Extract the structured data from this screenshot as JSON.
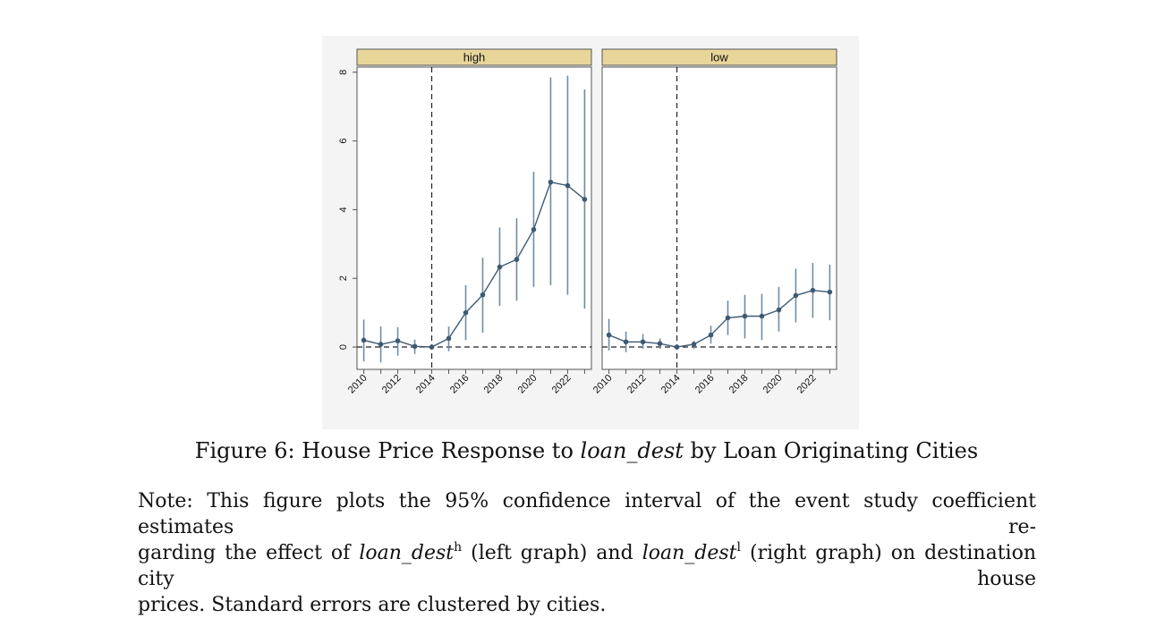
{
  "figure": {
    "caption_prefix": "Figure 6: House Price Response to",
    "caption_italic": "loan_dest",
    "caption_suffix": "by Loan Originating Cities",
    "note": {
      "t1": "Note: This figure plots the 95% confidence interval of the event study coefficient estimates re-",
      "t2a": "garding the effect of",
      "t2b_italic": "loan_dest",
      "t2b_sup": "h",
      "t2c": "(left graph) and",
      "t2d_italic": "loan_dest",
      "t2d_sup": "l",
      "t2e": "(right graph) on destination city house",
      "t3": "prices. Standard errors are clustered by cities."
    }
  },
  "colors": {
    "series": "#3d5a73",
    "ci": "#6f8ca3",
    "panel_header": "#e8d59a",
    "reference_line": "#222222"
  },
  "chart_data": [
    {
      "type": "line",
      "panel_title": "high",
      "x": [
        2010,
        2011,
        2012,
        2013,
        2014,
        2015,
        2016,
        2017,
        2018,
        2019,
        2020,
        2021,
        2022,
        2023
      ],
      "y": [
        0.2,
        0.08,
        0.18,
        0.02,
        0.0,
        0.25,
        1.0,
        1.52,
        2.33,
        2.55,
        3.42,
        4.8,
        4.7,
        4.3
      ],
      "ci_low": [
        -0.42,
        -0.45,
        -0.25,
        -0.2,
        0.0,
        -0.12,
        0.2,
        0.42,
        1.2,
        1.35,
        1.75,
        1.8,
        1.52,
        1.12
      ],
      "ci_high": [
        0.8,
        0.6,
        0.58,
        0.22,
        0.0,
        0.6,
        1.8,
        2.6,
        3.48,
        3.75,
        5.1,
        7.85,
        7.9,
        7.5
      ],
      "xticks": [
        "2010",
        "2012",
        "2014",
        "2016",
        "2018",
        "2020",
        "2022"
      ],
      "yticks": [
        "0",
        "2",
        "4",
        "6",
        "8"
      ],
      "ylim": [
        -0.65,
        8.15
      ],
      "xlim": [
        2009.6,
        2023.4
      ],
      "vline": 2014,
      "hline": 0,
      "grid": false
    },
    {
      "type": "line",
      "panel_title": "low",
      "x": [
        2010,
        2011,
        2012,
        2013,
        2014,
        2015,
        2016,
        2017,
        2018,
        2019,
        2020,
        2021,
        2022,
        2023
      ],
      "y": [
        0.35,
        0.15,
        0.15,
        0.1,
        0.0,
        0.08,
        0.35,
        0.85,
        0.9,
        0.9,
        1.08,
        1.5,
        1.65,
        1.6
      ],
      "ci_low": [
        -0.1,
        -0.15,
        -0.05,
        -0.05,
        0.0,
        -0.05,
        0.1,
        0.35,
        0.25,
        0.2,
        0.45,
        0.72,
        0.85,
        0.78
      ],
      "ci_high": [
        0.82,
        0.45,
        0.38,
        0.25,
        0.0,
        0.18,
        0.62,
        1.35,
        1.52,
        1.55,
        1.75,
        2.28,
        2.45,
        2.4
      ],
      "xticks": [
        "2010",
        "2012",
        "2014",
        "2016",
        "2018",
        "2020",
        "2022"
      ],
      "yticks": [
        "0",
        "2",
        "4",
        "6",
        "8"
      ],
      "ylim": [
        -0.65,
        8.15
      ],
      "xlim": [
        2009.6,
        2023.4
      ],
      "vline": 2014,
      "hline": 0,
      "grid": false
    }
  ]
}
